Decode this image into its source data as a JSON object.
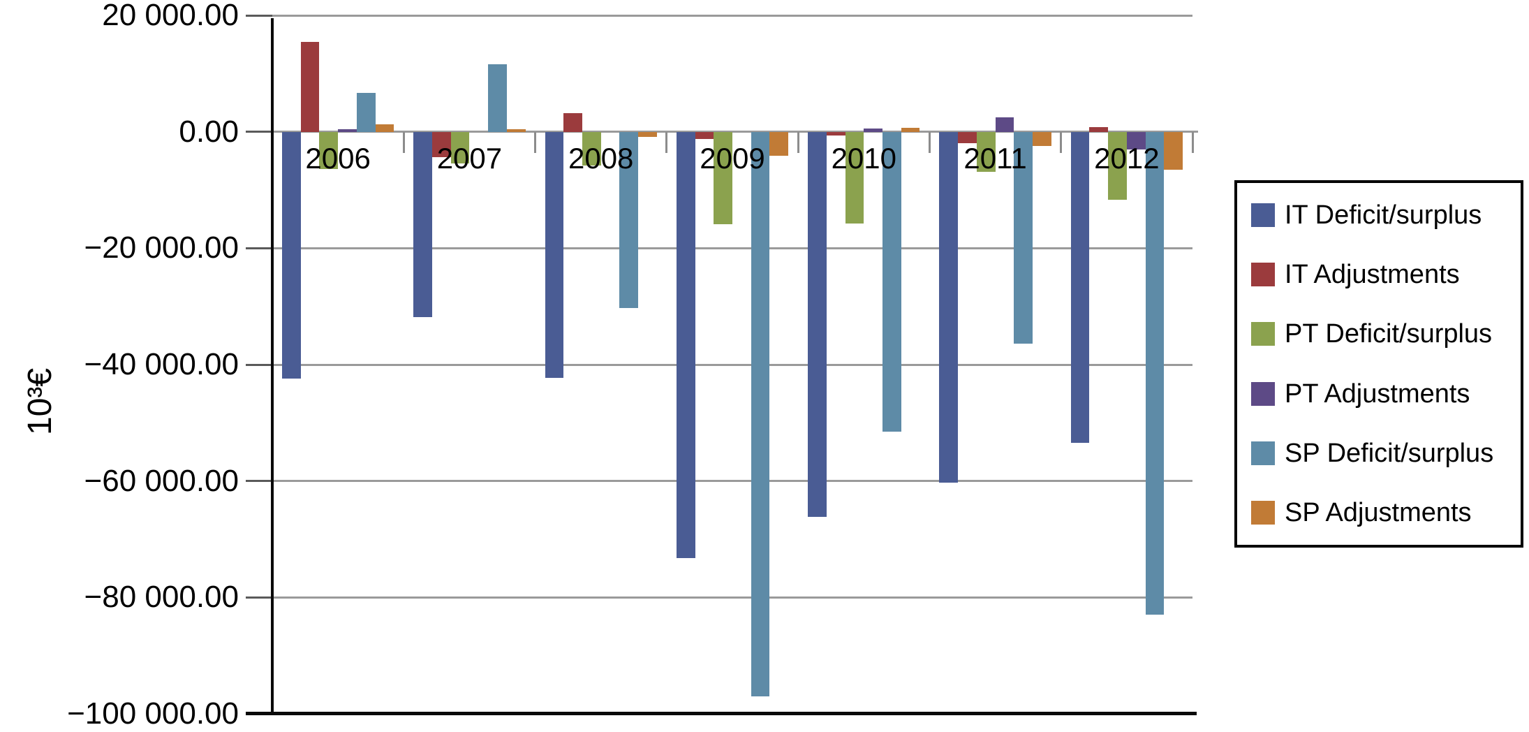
{
  "chart_data": {
    "type": "bar",
    "title": "",
    "xlabel": "",
    "ylabel": "10³€",
    "unit": "thousand euros",
    "categories": [
      "2006",
      "2007",
      "2008",
      "2009",
      "2010",
      "2011",
      "2012"
    ],
    "series": [
      {
        "name": "IT Deficit/surplus",
        "color": "#4a5c94",
        "values": [
          -42400,
          -31900,
          -42300,
          -73200,
          -66200,
          -60300,
          -53400
        ]
      },
      {
        "name": "IT Adjustments",
        "color": "#9b3b3d",
        "values": [
          15500,
          -4400,
          3200,
          -1200,
          -700,
          -2000,
          800
        ]
      },
      {
        "name": "PT Deficit/surplus",
        "color": "#8ba24e",
        "values": [
          -6400,
          -5500,
          -5800,
          -15900,
          -15800,
          -6900,
          -11700
        ]
      },
      {
        "name": "PT Adjustments",
        "color": "#5d4a86",
        "values": [
          500,
          0,
          0,
          0,
          600,
          2500,
          -3000
        ]
      },
      {
        "name": "SP Deficit/surplus",
        "color": "#5e8ba7",
        "values": [
          6700,
          11600,
          -30300,
          -97000,
          -51500,
          -36400,
          -83000
        ]
      },
      {
        "name": "SP Adjustments",
        "color": "#c17b36",
        "values": [
          1300,
          500,
          -900,
          -4100,
          700,
          -2500,
          -6500
        ]
      }
    ],
    "ylim": [
      -100000,
      20000
    ],
    "y_ticks": [
      20000,
      0,
      -20000,
      -40000,
      -60000,
      -80000,
      -100000
    ],
    "y_tick_labels": [
      "20 000.00",
      "0.00",
      "−20 000.00",
      "−40 000.00",
      "−60 000.00",
      "−80 000.00",
      "−100 000.00"
    ],
    "grid": true,
    "legend_position": "right"
  }
}
